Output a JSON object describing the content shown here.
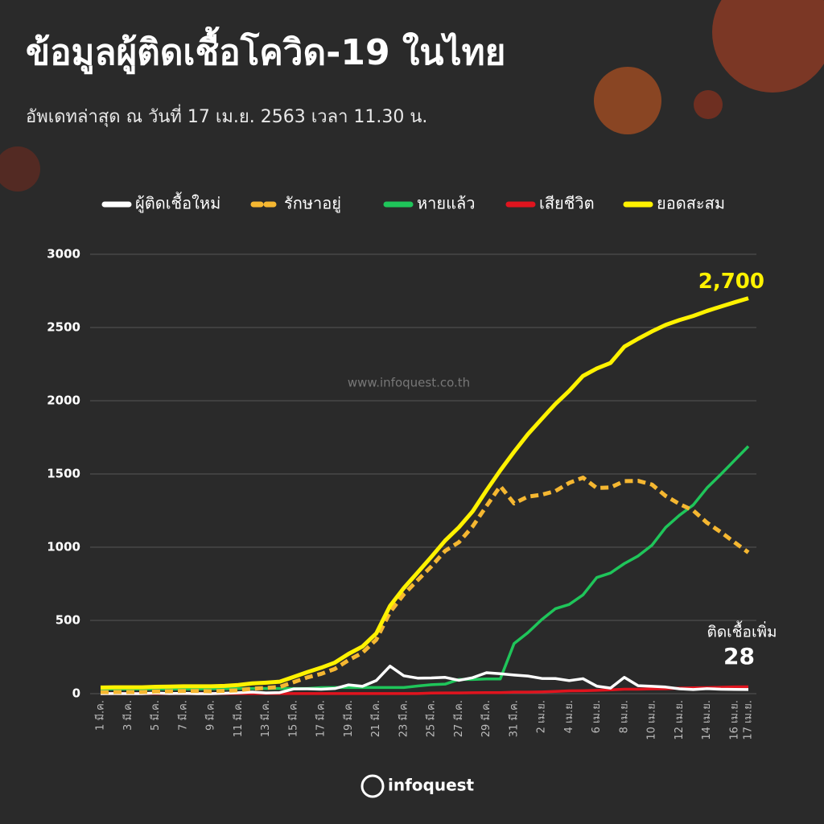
{
  "chart_data": {
    "type": "line",
    "title": "ข้อมูลผู้ติดเชื้อโควิด-19 ในไทย",
    "subtitle": "อัพเดทล่าสุด ณ วันที่ 17 เม.ย. 2563 เวลา 11.30 น.",
    "watermark": "www.infoquest.co.th",
    "logo": "infoquest",
    "annotation": "ติดเชื้อเพิ่ม",
    "categories": [
      "1 มี.ค.",
      null,
      "3 มี.ค.",
      null,
      "5 มี.ค.",
      null,
      "7 มี.ค.",
      null,
      "9 มี.ค.",
      null,
      "11 มี.ค.",
      null,
      "13 มี.ค.",
      null,
      "15 มี.ค.",
      null,
      "17 มี.ค.",
      null,
      "19 มี.ค.",
      null,
      "21 มี.ค.",
      null,
      "23 มี.ค.",
      null,
      "25 มี.ค.",
      null,
      "27 มี.ค.",
      null,
      "29 มี.ค.",
      null,
      "31 มี.ค.",
      null,
      "2 เม.ย.",
      null,
      "4 เม.ย.",
      null,
      "6 เม.ย.",
      null,
      "8 เม.ย.",
      null,
      "10 เม.ย.",
      null,
      "12 เม.ย.",
      null,
      "14 เม.ย.",
      null,
      "16 เม.ย.",
      "17 เม.ย."
    ],
    "ylim": [
      0,
      3000
    ],
    "yticks": [
      0,
      500,
      1000,
      1500,
      2000,
      2500,
      3000
    ],
    "grid": true,
    "series": [
      {
        "name": "ผู้ติดเชื้อใหม่",
        "color": "#ffffff",
        "dash": false,
        "values": [
          0,
          1,
          0,
          0,
          4,
          1,
          2,
          0,
          0,
          3,
          6,
          11,
          5,
          7,
          32,
          33,
          30,
          35,
          60,
          50,
          89,
          188,
          122,
          106,
          107,
          111,
          91,
          109,
          143,
          136,
          127,
          120,
          104,
          103,
          89,
          102,
          51,
          38,
          111,
          54,
          50,
          45,
          33,
          28,
          34,
          30,
          29,
          28
        ],
        "value_labels": [
          null,
          null,
          null,
          null,
          null,
          null,
          null,
          null,
          null,
          null,
          null,
          null,
          null,
          null,
          null,
          null,
          null,
          null,
          null,
          null,
          null,
          null,
          null,
          null,
          null,
          null,
          null,
          null,
          null,
          null,
          null,
          null,
          null,
          null,
          null,
          null,
          null,
          null,
          null,
          null,
          null,
          null,
          null,
          null,
          null,
          null,
          null,
          "28"
        ]
      },
      {
        "name": "รักษาอยู่",
        "color": "#f5b731",
        "dash": true,
        "values": [
          10,
          11,
          11,
          11,
          15,
          16,
          18,
          18,
          16,
          19,
          23,
          34,
          39,
          46,
          78,
          111,
          135,
          169,
          229,
          279,
          368,
          556,
          678,
          774,
          869,
          975,
          1034,
          1142,
          1281,
          1417,
          1299,
          1345,
          1358,
          1383,
          1439,
          1475,
          1404,
          1408,
          1451,
          1453,
          1428,
          1350,
          1295,
          1251,
          1167,
          1103,
          1033,
          964
        ]
      },
      {
        "name": "หายแล้ว",
        "color": "#1fc55a",
        "dash": false,
        "values": [
          31,
          31,
          31,
          31,
          31,
          31,
          31,
          31,
          33,
          33,
          35,
          35,
          35,
          35,
          35,
          35,
          41,
          42,
          42,
          42,
          42,
          42,
          42,
          52,
          61,
          65,
          97,
          97,
          100,
          100,
          342,
          416,
          505,
          580,
          609,
          674,
          793,
          824,
          888,
          940,
          1013,
          1135,
          1218,
          1288,
          1405,
          1497,
          1593,
          1689
        ]
      },
      {
        "name": "เสียชีวิต",
        "color": "#e0141e",
        "dash": false,
        "values": [
          1,
          1,
          1,
          1,
          1,
          1,
          1,
          1,
          1,
          1,
          1,
          1,
          1,
          1,
          1,
          1,
          1,
          1,
          1,
          1,
          1,
          1,
          1,
          1,
          4,
          5,
          5,
          6,
          7,
          7,
          10,
          10,
          12,
          15,
          19,
          20,
          23,
          26,
          30,
          30,
          32,
          33,
          38,
          40,
          41,
          43,
          46,
          47
        ]
      },
      {
        "name": "ยอดสะสม",
        "color": "#fff200",
        "dash": false,
        "values": [
          42,
          43,
          43,
          43,
          47,
          48,
          50,
          50,
          50,
          53,
          59,
          70,
          75,
          82,
          114,
          147,
          177,
          212,
          272,
          322,
          411,
          599,
          721,
          827,
          934,
          1045,
          1136,
          1245,
          1388,
          1524,
          1651,
          1771,
          1875,
          1978,
          2067,
          2169,
          2220,
          2258,
          2369,
          2423,
          2473,
          2518,
          2551,
          2579,
          2613,
          2643,
          2672,
          2700
        ],
        "value_labels": [
          null,
          null,
          null,
          null,
          null,
          null,
          null,
          null,
          null,
          null,
          null,
          null,
          null,
          null,
          null,
          null,
          null,
          null,
          null,
          null,
          null,
          null,
          null,
          null,
          null,
          null,
          null,
          null,
          null,
          null,
          null,
          null,
          null,
          null,
          null,
          null,
          null,
          null,
          null,
          null,
          null,
          null,
          null,
          null,
          null,
          null,
          null,
          "2,700"
        ]
      }
    ]
  }
}
